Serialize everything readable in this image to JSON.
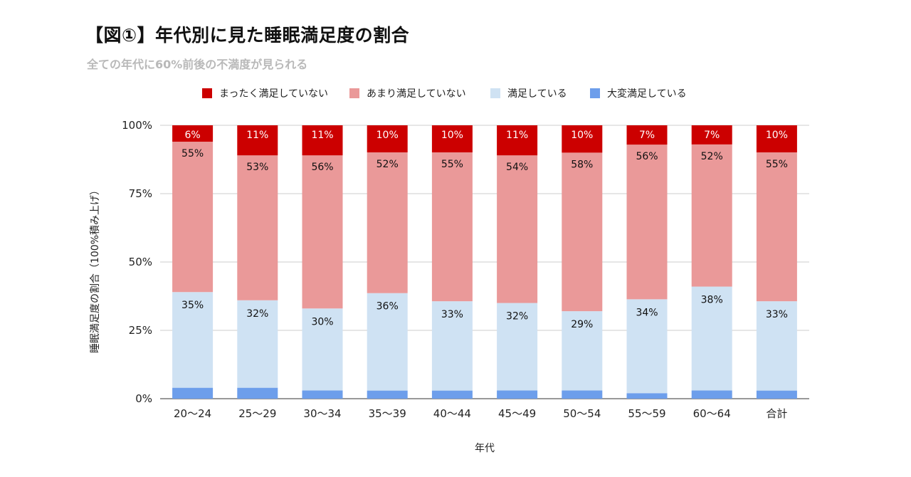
{
  "chart_data": {
    "type": "bar",
    "stacked": true,
    "title": "【図①】年代別に見た睡眠満足度の割合",
    "subtitle": "全ての年代に60%前後の不満度が見られる",
    "xlabel": "年代",
    "ylabel": "睡眠満足度の割合（100%積み上げ）",
    "ylim": [
      0,
      100
    ],
    "yticks": [
      "0%",
      "25%",
      "50%",
      "75%",
      "100%"
    ],
    "legend_position": "top",
    "categories": [
      "20〜24",
      "25〜29",
      "30〜34",
      "35〜39",
      "40〜44",
      "45〜49",
      "50〜54",
      "55〜59",
      "60〜64",
      "合計"
    ],
    "series": [
      {
        "name": "大変満足している",
        "color": "#6d9eeb",
        "label_color": "#ffffff",
        "values": [
          4,
          4,
          3,
          3,
          3,
          3,
          3,
          2,
          3,
          3
        ]
      },
      {
        "name": "満足している",
        "color": "#cfe2f3",
        "label_color": "#111111",
        "values": [
          35,
          32,
          30,
          36,
          33,
          32,
          29,
          34,
          38,
          33
        ]
      },
      {
        "name": "あまり満足していない",
        "color": "#ea9999",
        "label_color": "#111111",
        "values": [
          55,
          53,
          56,
          52,
          55,
          54,
          58,
          56,
          52,
          55
        ]
      },
      {
        "name": "まったく満足していない",
        "color": "#cc0000",
        "label_color": "#ffffff",
        "values": [
          6,
          11,
          11,
          10,
          10,
          11,
          10,
          7,
          7,
          10
        ]
      }
    ],
    "legend_order": [
      "まったく満足していない",
      "あまり満足していない",
      "満足している",
      "大変満足している"
    ]
  }
}
